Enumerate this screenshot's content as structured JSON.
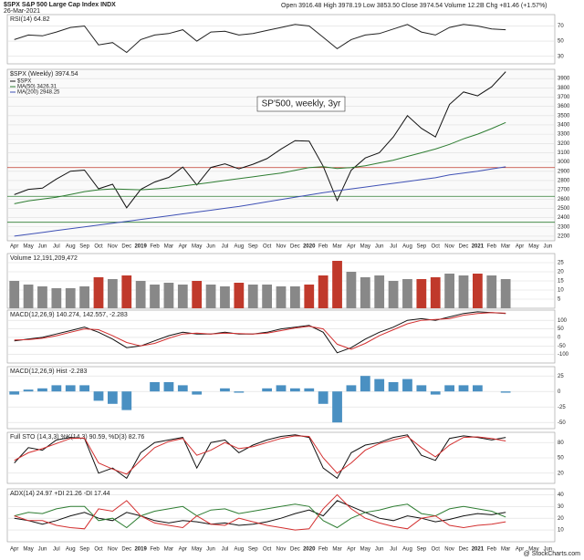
{
  "header": {
    "symbol": "$SPX S&P 500 Large Cap Index INDX",
    "date": "26-Mar-2021",
    "quote": "Open 3916.48  High 3978.19  Low 3853.50  Close 3974.54  Volume 12.2B  Chg +81.46 (+1.57%)",
    "credit": "@ StockCharts.com"
  },
  "chart_data": [
    {
      "type": "line",
      "label": "RSI(14) 64.82",
      "ylim": [
        20,
        85
      ],
      "yticks": [
        30,
        50,
        70
      ],
      "series": [
        {
          "name": "RSI",
          "color": "#222",
          "values": [
            52,
            58,
            57,
            62,
            68,
            70,
            45,
            48,
            35,
            52,
            58,
            60,
            65,
            50,
            62,
            63,
            58,
            60,
            64,
            68,
            72,
            70,
            55,
            40,
            52,
            58,
            60,
            66,
            72,
            62,
            58,
            68,
            72,
            70,
            66,
            65,
            null,
            null,
            null
          ]
        }
      ]
    },
    {
      "type": "price",
      "label": "$SPX (Weekly) 3974.54",
      "annotation": "SP'500, weekly, 3yr",
      "categories": [
        "Apr",
        "May",
        "Jun",
        "Jul",
        "Aug",
        "Sep",
        "Oct",
        "Nov",
        "Dec",
        "2019",
        "Feb",
        "Mar",
        "Apr",
        "May",
        "Jun",
        "Jul",
        "Aug",
        "Sep",
        "Oct",
        "Nov",
        "Dec",
        "2020",
        "Feb",
        "Mar",
        "Apr",
        "May",
        "Jun",
        "Jul",
        "Aug",
        "Sep",
        "Oct",
        "Nov",
        "Dec",
        "2021",
        "Feb",
        "Mar",
        "Apr",
        "May",
        "Jun"
      ],
      "ylim": [
        2150,
        4000
      ],
      "yticks": [
        2200,
        2300,
        2400,
        2500,
        2600,
        2700,
        2800,
        2900,
        3000,
        3100,
        3200,
        3300,
        3400,
        3500,
        3600,
        3700,
        3800,
        3900
      ],
      "hlines": [
        {
          "value": 2940,
          "color": "#c0392b"
        },
        {
          "value": 2630,
          "color": "#2e7d32"
        },
        {
          "value": 2350,
          "color": "#2e7d32"
        }
      ],
      "series": [
        {
          "name": "$SPX",
          "color": "#111",
          "values": [
            2648,
            2705,
            2718,
            2816,
            2901,
            2913,
            2711,
            2760,
            2506,
            2704,
            2784,
            2834,
            2945,
            2752,
            2941,
            2980,
            2926,
            2976,
            3037,
            3140,
            3230,
            3225,
            2954,
            2584,
            2912,
            3044,
            3100,
            3271,
            3500,
            3363,
            3270,
            3621,
            3756,
            3714,
            3811,
            3974,
            null,
            null,
            null
          ]
        },
        {
          "name": "MA(50) 3426.31",
          "color": "#2e7d32",
          "values": [
            2550,
            2580,
            2600,
            2620,
            2650,
            2680,
            2700,
            2710,
            2705,
            2700,
            2710,
            2720,
            2740,
            2760,
            2780,
            2800,
            2820,
            2840,
            2860,
            2880,
            2910,
            2940,
            2950,
            2930,
            2940,
            2960,
            2990,
            3020,
            3060,
            3100,
            3140,
            3190,
            3250,
            3300,
            3360,
            3426,
            null,
            null,
            null
          ]
        },
        {
          "name": "MA(200) 2948.25",
          "color": "#3f51b5",
          "values": [
            2200,
            2220,
            2240,
            2260,
            2280,
            2300,
            2320,
            2340,
            2360,
            2380,
            2400,
            2420,
            2440,
            2460,
            2480,
            2500,
            2520,
            2545,
            2570,
            2595,
            2620,
            2645,
            2670,
            2690,
            2710,
            2730,
            2750,
            2770,
            2790,
            2810,
            2830,
            2860,
            2880,
            2900,
            2925,
            2948,
            null,
            null,
            null
          ]
        }
      ]
    },
    {
      "type": "bar",
      "label": "Volume 12,191,209,472",
      "ylim": [
        0,
        30
      ],
      "yticks": [
        5,
        10,
        15,
        20,
        25
      ],
      "color": "#888",
      "values": [
        15,
        13,
        12,
        11,
        11,
        12,
        17,
        16,
        18,
        15,
        13,
        14,
        13,
        15,
        13,
        12,
        14,
        13,
        13,
        12,
        12,
        13,
        18,
        26,
        20,
        17,
        18,
        15,
        16,
        16,
        17,
        19,
        18,
        19,
        18,
        16,
        null,
        null,
        null
      ]
    },
    {
      "type": "line",
      "label": "MACD(12,26,9) 140.274, 142.557, -2.283",
      "ylim": [
        -150,
        160
      ],
      "yticks": [
        -100,
        -50,
        0,
        50,
        100
      ],
      "series": [
        {
          "name": "MACD",
          "color": "#111",
          "values": [
            -20,
            -10,
            0,
            20,
            40,
            60,
            30,
            -10,
            -60,
            -50,
            -20,
            10,
            30,
            20,
            20,
            30,
            20,
            20,
            30,
            50,
            60,
            70,
            30,
            -90,
            -60,
            -10,
            30,
            60,
            100,
            110,
            100,
            120,
            140,
            150,
            145,
            140,
            null,
            null,
            null
          ]
        },
        {
          "name": "Signal",
          "color": "#d32f2f",
          "values": [
            -15,
            -13,
            -5,
            10,
            30,
            50,
            45,
            10,
            -30,
            -50,
            -35,
            -5,
            20,
            25,
            20,
            25,
            22,
            20,
            25,
            40,
            55,
            65,
            50,
            -40,
            -70,
            -35,
            10,
            45,
            80,
            100,
            105,
            110,
            130,
            140,
            145,
            142,
            null,
            null,
            null
          ]
        }
      ]
    },
    {
      "type": "bar",
      "label": "MACD(12,26,9) Hist -2.283",
      "ylim": [
        -60,
        40
      ],
      "yticks": [
        -50,
        -25,
        0,
        25
      ],
      "color": "#4a90c2",
      "values": [
        -5,
        3,
        5,
        10,
        10,
        10,
        -15,
        -20,
        -30,
        0,
        15,
        15,
        10,
        -5,
        0,
        5,
        -2,
        0,
        5,
        10,
        5,
        5,
        -20,
        -50,
        10,
        25,
        20,
        15,
        20,
        10,
        -5,
        10,
        10,
        10,
        0,
        -2,
        null,
        null,
        null
      ]
    },
    {
      "type": "line",
      "label": "Full STO (14,3,3) %K(14,3) 90.59, %D(3) 82.76",
      "ylim": [
        0,
        100
      ],
      "yticks": [
        20,
        50,
        80
      ],
      "series": [
        {
          "name": "%K",
          "color": "#111",
          "values": [
            40,
            70,
            65,
            85,
            90,
            88,
            20,
            30,
            10,
            60,
            80,
            85,
            90,
            30,
            80,
            85,
            60,
            75,
            85,
            92,
            95,
            90,
            30,
            10,
            60,
            75,
            80,
            90,
            95,
            55,
            45,
            88,
            93,
            90,
            85,
            90,
            null,
            null,
            null
          ]
        },
        {
          "name": "%D",
          "color": "#d32f2f",
          "values": [
            45,
            60,
            68,
            78,
            88,
            89,
            40,
            28,
            18,
            45,
            70,
            82,
            88,
            55,
            65,
            80,
            68,
            72,
            80,
            88,
            93,
            92,
            50,
            20,
            40,
            65,
            78,
            85,
            92,
            70,
            52,
            75,
            90,
            91,
            88,
            83,
            null,
            null,
            null
          ]
        }
      ]
    },
    {
      "type": "line",
      "label": "ADX(14) 24.97 +DI 21.26 -DI 17.44",
      "ylim": [
        0,
        45
      ],
      "yticks": [
        10,
        20,
        30,
        40
      ],
      "series": [
        {
          "name": "ADX",
          "color": "#111",
          "values": [
            20,
            18,
            15,
            18,
            22,
            25,
            20,
            18,
            25,
            22,
            18,
            16,
            18,
            17,
            15,
            16,
            14,
            15,
            17,
            20,
            24,
            27,
            22,
            35,
            30,
            25,
            20,
            18,
            22,
            20,
            17,
            19,
            22,
            24,
            23,
            25,
            null,
            null,
            null
          ]
        },
        {
          "name": "+DI",
          "color": "#2e7d32",
          "values": [
            22,
            25,
            24,
            28,
            30,
            30,
            18,
            20,
            12,
            22,
            26,
            28,
            30,
            22,
            27,
            28,
            24,
            26,
            28,
            30,
            32,
            30,
            18,
            12,
            20,
            25,
            27,
            30,
            32,
            24,
            22,
            28,
            30,
            28,
            26,
            21,
            null,
            null,
            null
          ]
        },
        {
          "name": "-DI",
          "color": "#d32f2f",
          "values": [
            22,
            18,
            18,
            14,
            12,
            11,
            28,
            26,
            35,
            22,
            16,
            14,
            12,
            22,
            15,
            14,
            20,
            17,
            14,
            12,
            10,
            11,
            28,
            40,
            28,
            20,
            16,
            13,
            11,
            20,
            22,
            14,
            12,
            14,
            15,
            17,
            null,
            null,
            null
          ]
        }
      ]
    }
  ]
}
